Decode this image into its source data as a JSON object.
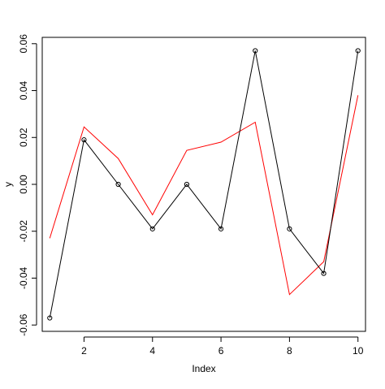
{
  "chart_data": {
    "type": "line",
    "title": "",
    "xlabel": "Index",
    "ylabel": "y",
    "x": [
      1,
      2,
      3,
      4,
      5,
      6,
      7,
      8,
      9,
      10
    ],
    "xlim": [
      0.78,
      10.22
    ],
    "ylim": [
      -0.0627,
      0.0627
    ],
    "x_ticks": [
      2,
      4,
      6,
      8,
      10
    ],
    "x_tick_labels": [
      "2",
      "4",
      "6",
      "8",
      "10"
    ],
    "y_ticks": [
      -0.06,
      -0.04,
      -0.02,
      0.0,
      0.02,
      0.04,
      0.06
    ],
    "y_tick_labels": [
      "-0.06",
      "-0.04",
      "-0.02",
      "0.00",
      "0.02",
      "0.04",
      "0.06"
    ],
    "grid": false,
    "legend": "none",
    "series": [
      {
        "color": "#000000",
        "markers": "open-circle",
        "values": [
          -0.057,
          0.019,
          0.0,
          -0.019,
          0.0,
          -0.019,
          0.057,
          -0.019,
          -0.038,
          0.057
        ]
      },
      {
        "color": "#ff0000",
        "markers": "none",
        "values": [
          -0.023,
          0.0245,
          0.011,
          -0.013,
          0.0145,
          0.018,
          0.0265,
          -0.047,
          -0.033,
          0.038
        ]
      }
    ]
  }
}
